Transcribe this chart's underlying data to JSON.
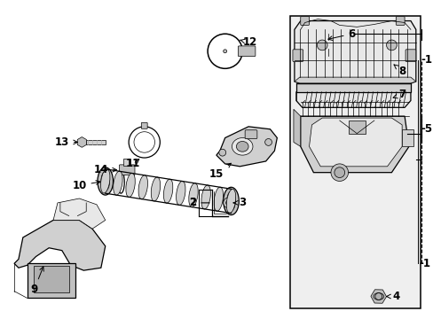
{
  "bg_color": "#ffffff",
  "lc": "#000000",
  "gray1": "#e8e8e8",
  "gray2": "#d0d0d0",
  "gray3": "#c0c0c0",
  "gray4": "#b0b0b0",
  "box_bg": "#f0f0f0",
  "lw": 0.9,
  "lw_thin": 0.5
}
